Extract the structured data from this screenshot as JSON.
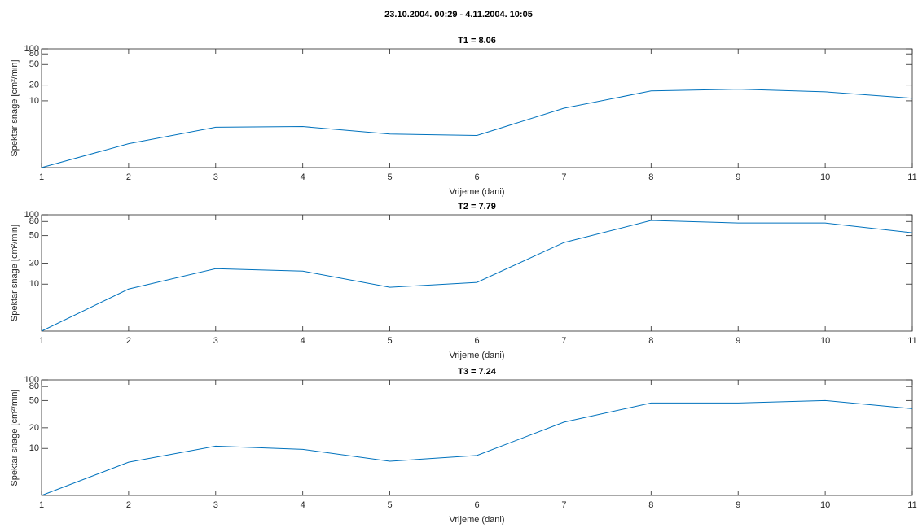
{
  "title": "23.10.2004. 00:29 - 4.11.2004. 10:05",
  "chart_data": [
    {
      "type": "line",
      "title": "T1 = 8.06",
      "xlabel": "Vrijeme (dani)",
      "ylabel": "Spektar snage [cm²/min]",
      "x": [
        1,
        2,
        3,
        4,
        5,
        6,
        7,
        8,
        9,
        10,
        11
      ],
      "values": [
        0.52,
        1.5,
        3.1,
        3.2,
        2.3,
        2.16,
        7.2,
        15.5,
        16.7,
        14.9,
        11.2
      ],
      "color": "#0072bd",
      "xlim": [
        1,
        11
      ],
      "xticks": [
        1,
        2,
        3,
        4,
        5,
        6,
        7,
        8,
        9,
        10,
        11
      ],
      "ylim": [
        0.52,
        100
      ],
      "yticks": [
        10,
        20,
        50,
        80,
        100
      ],
      "yscale": "log"
    },
    {
      "type": "line",
      "title": "T2 = 7.79",
      "xlabel": "Vrijeme (dani)",
      "ylabel": "Spektar snage [cm²/min]",
      "x": [
        1,
        2,
        3,
        4,
        5,
        6,
        7,
        8,
        9,
        10,
        11
      ],
      "values": [
        2.1,
        8.5,
        16.7,
        15.4,
        9.0,
        10.6,
        39.8,
        82.7,
        76,
        76,
        55
      ],
      "color": "#0072bd",
      "xlim": [
        1,
        11
      ],
      "xticks": [
        1,
        2,
        3,
        4,
        5,
        6,
        7,
        8,
        9,
        10,
        11
      ],
      "ylim": [
        2.1,
        100
      ],
      "yticks": [
        10,
        20,
        50,
        80,
        100
      ],
      "yscale": "log"
    },
    {
      "type": "line",
      "title": "T3 = 7.24",
      "xlabel": "Vrijeme (dani)",
      "ylabel": "Spektar snage [cm²/min]",
      "x": [
        1,
        2,
        3,
        4,
        5,
        6,
        7,
        8,
        9,
        10,
        11
      ],
      "values": [
        2.06,
        6.3,
        10.8,
        9.7,
        6.5,
        7.9,
        24.2,
        46,
        46,
        50,
        38
      ],
      "color": "#0072bd",
      "xlim": [
        1,
        11
      ],
      "xticks": [
        1,
        2,
        3,
        4,
        5,
        6,
        7,
        8,
        9,
        10,
        11
      ],
      "ylim": [
        2.06,
        100
      ],
      "yticks": [
        10,
        20,
        50,
        80,
        100
      ],
      "yscale": "log"
    }
  ]
}
